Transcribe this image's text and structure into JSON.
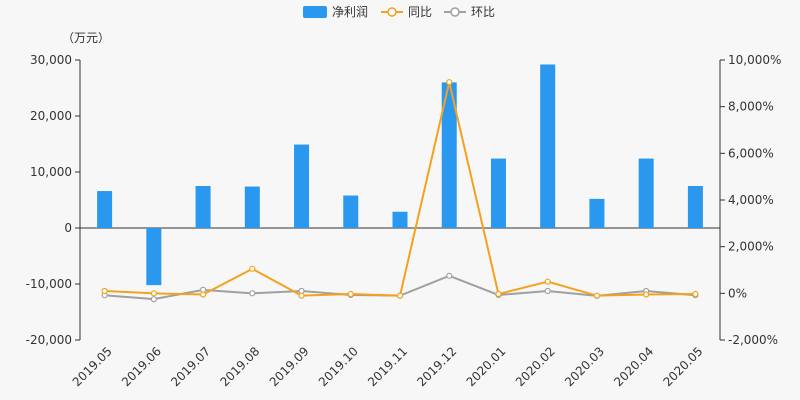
{
  "chart_data": {
    "type": "bar",
    "unit_label": "（万元）",
    "categories": [
      "2019.05",
      "2019.06",
      "2019.07",
      "2019.08",
      "2019.09",
      "2019.10",
      "2019.11",
      "2019.12",
      "2020.01",
      "2020.02",
      "2020.03",
      "2020.04",
      "2020.05"
    ],
    "series": [
      {
        "name": "净利润",
        "type": "bar",
        "axis": "left",
        "color": "#2b98f0",
        "values": [
          6600,
          -10200,
          7500,
          7400,
          14900,
          5800,
          2900,
          26000,
          12400,
          29200,
          5200,
          12400,
          7500
        ]
      },
      {
        "name": "同比",
        "type": "line",
        "axis": "right",
        "color": "#f4a11e",
        "values": [
          100,
          0,
          -50,
          1050,
          -100,
          -30,
          -100,
          9050,
          -30,
          500,
          -100,
          -50,
          -30
        ]
      },
      {
        "name": "环比",
        "type": "line",
        "axis": "right",
        "color": "#a0a0a0",
        "values": [
          -80,
          -250,
          150,
          0,
          100,
          -70,
          -100,
          750,
          -70,
          100,
          -110,
          100,
          -80
        ]
      }
    ],
    "y_left": {
      "min": -20000,
      "max": 30000,
      "ticks": [
        "-20,000",
        "-10,000",
        "0",
        "10,000",
        "20,000",
        "30,000"
      ]
    },
    "y_right": {
      "min": -2000,
      "max": 10000,
      "ticks": [
        "-2,000%",
        "0%",
        "2,000%",
        "4,000%",
        "6,000%",
        "8,000%",
        "10,000%"
      ]
    },
    "legend_position": "top-center",
    "grid": false
  }
}
